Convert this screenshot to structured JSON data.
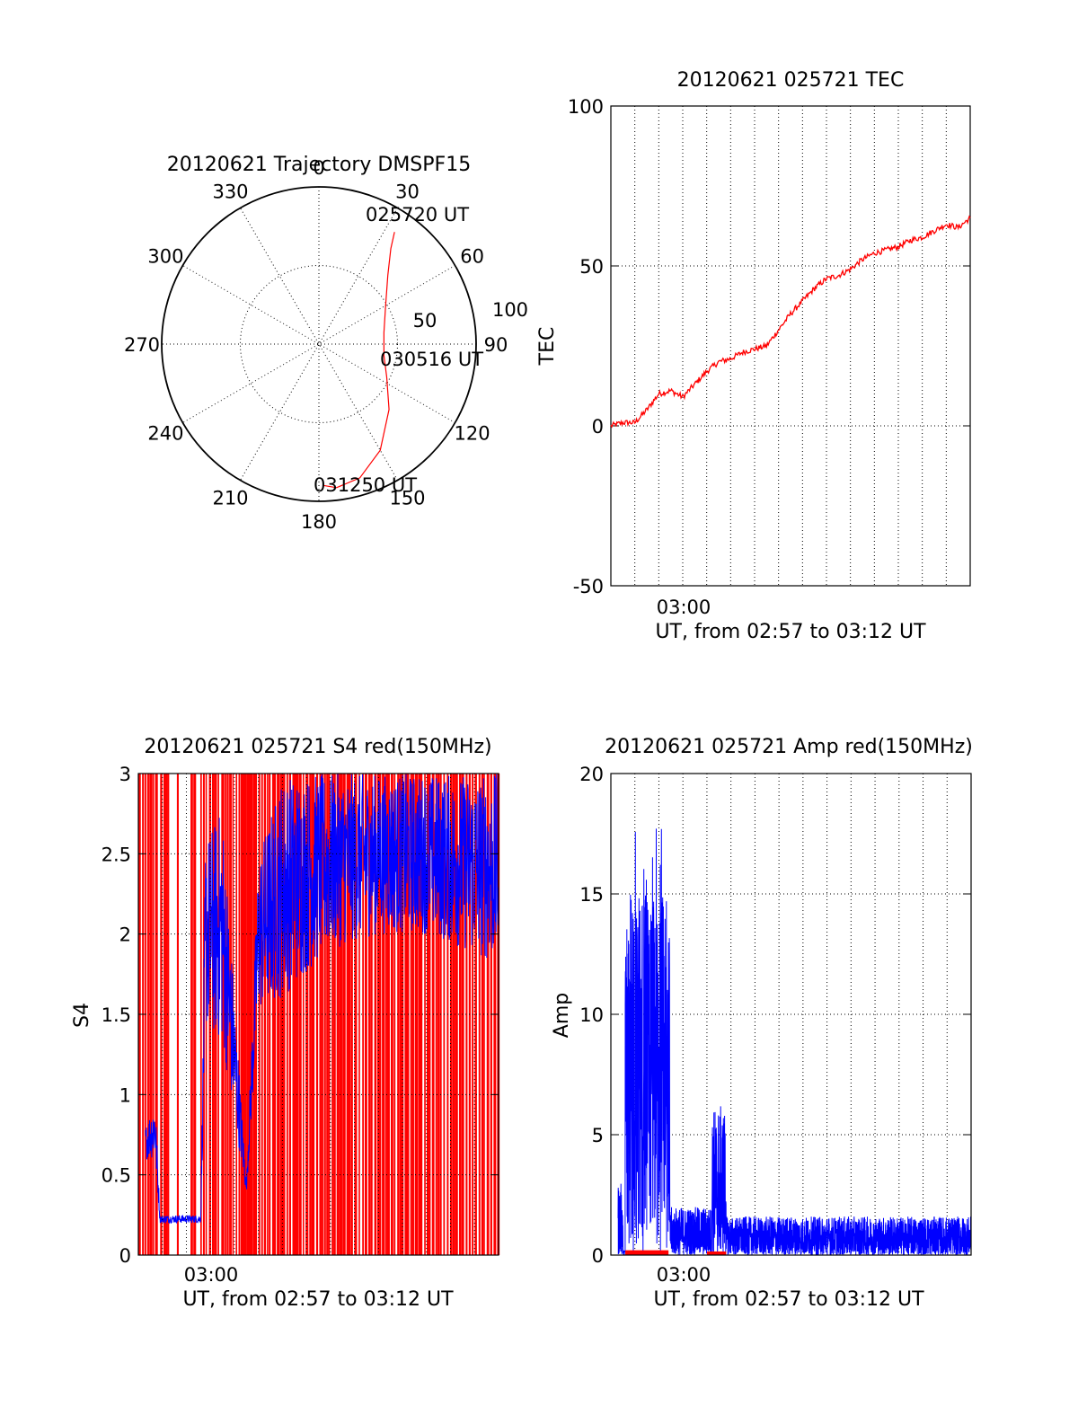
{
  "chart_data": [
    {
      "id": "trajectory",
      "type": "polar",
      "title": "20120621 Trajectory DMSPF15",
      "azimuth_labels": [
        "0",
        "30",
        "60",
        "90",
        "120",
        "150",
        "180",
        "210",
        "240",
        "270",
        "300",
        "330"
      ],
      "radius_labels": [
        "50",
        "100"
      ],
      "rlim": [
        0,
        100
      ],
      "grid": true,
      "trajectory": {
        "color": "#ff0000",
        "points": [
          {
            "az": 34,
            "r": 86
          },
          {
            "az": 37,
            "r": 76
          },
          {
            "az": 45,
            "r": 62
          },
          {
            "az": 60,
            "r": 49
          },
          {
            "az": 80,
            "r": 42
          },
          {
            "az": 100,
            "r": 42
          },
          {
            "az": 116,
            "r": 48
          },
          {
            "az": 133,
            "r": 61
          },
          {
            "az": 150,
            "r": 78
          },
          {
            "az": 163,
            "r": 89
          },
          {
            "az": 173,
            "r": 92
          },
          {
            "az": 178,
            "r": 90
          }
        ]
      },
      "annotations": [
        "025720 UT",
        "030516 UT",
        "031250 UT"
      ]
    },
    {
      "id": "tec",
      "type": "line",
      "title": "20120621 025721 TEC",
      "ylabel": "TEC",
      "xlabel": "UT, from 02:57 to 03:12 UT",
      "x_range_minutes": [
        0,
        15
      ],
      "xtick_labels": [
        {
          "minute": 3,
          "label": "03:00"
        }
      ],
      "ylim": [
        -50,
        100
      ],
      "yticks": [
        "-50",
        "0",
        "50",
        "100"
      ],
      "grid": true,
      "series": [
        {
          "color": "#ff0000",
          "x": [
            0,
            0.5,
            1,
            1.5,
            2,
            2.5,
            3,
            3.5,
            4,
            4.5,
            5,
            5.5,
            6,
            6.5,
            7,
            7.5,
            8,
            8.5,
            9,
            9.5,
            10,
            10.5,
            11,
            11.5,
            12,
            12.5,
            13,
            13.5,
            14,
            14.5,
            15
          ],
          "y": [
            0,
            1,
            1,
            5,
            10,
            11,
            9,
            13,
            17,
            20,
            21,
            23,
            24,
            25,
            30,
            35,
            39,
            43,
            46,
            47,
            49,
            52,
            54,
            55,
            56,
            58,
            59,
            61,
            63,
            62,
            65
          ]
        }
      ]
    },
    {
      "id": "s4",
      "type": "line",
      "title": "20120621 025721 S4 red(150MHz)",
      "ylabel": "S4",
      "xlabel": "UT, from 02:57 to 03:12 UT",
      "x_range_minutes": [
        0,
        15
      ],
      "xtick_labels": [
        {
          "minute": 3,
          "label": "03:00"
        }
      ],
      "ylim": [
        0,
        3
      ],
      "yticks": [
        "0",
        "0.5",
        "1",
        "1.5",
        "2",
        "2.5",
        "3"
      ],
      "grid": true,
      "series": [
        {
          "color": "#0000ff",
          "style": "dense-noise",
          "envelope": [
            {
              "x": 0.3,
              "low": 0.6,
              "high": 0.8
            },
            {
              "x": 0.7,
              "low": 0.6,
              "high": 1.0
            },
            {
              "x": 0.9,
              "low": 0.2,
              "high": 0.25
            },
            {
              "x": 2.6,
              "low": 0.2,
              "high": 0.25
            },
            {
              "x": 2.8,
              "low": 1.4,
              "high": 2.6
            },
            {
              "x": 3.5,
              "low": 1.3,
              "high": 2.8
            },
            {
              "x": 4.5,
              "low": 0.38,
              "high": 0.45
            },
            {
              "x": 5.0,
              "low": 1.5,
              "high": 2.5
            },
            {
              "x": 6.0,
              "low": 1.6,
              "high": 3.0
            },
            {
              "x": 8.0,
              "low": 1.9,
              "high": 3.0
            },
            {
              "x": 10.0,
              "low": 2.0,
              "high": 3.0
            },
            {
              "x": 12.0,
              "low": 2.0,
              "high": 3.0
            },
            {
              "x": 15.0,
              "low": 1.8,
              "high": 3.0
            }
          ]
        },
        {
          "color": "#ff0000",
          "style": "vertical-spikes",
          "range": [
            0,
            3
          ]
        }
      ]
    },
    {
      "id": "amp",
      "type": "line",
      "title": "20120621 025721 Amp red(150MHz)",
      "ylabel": "Amp",
      "xlabel": "UT, from 02:57 to 03:12 UT",
      "x_range_minutes": [
        0,
        15
      ],
      "xtick_labels": [
        {
          "minute": 3,
          "label": "03:00"
        }
      ],
      "ylim": [
        0,
        20
      ],
      "yticks": [
        "0",
        "5",
        "10",
        "15",
        "20"
      ],
      "grid": true,
      "series": [
        {
          "color": "#0000ff",
          "style": "dense-noise",
          "envelope": [
            {
              "x": 0.0,
              "low": 0.0,
              "high": 3.0
            },
            {
              "x": 0.5,
              "low": 0.0,
              "high": 3.0
            },
            {
              "x": 0.6,
              "low": 0.0,
              "high": 0.0
            },
            {
              "x": 0.45,
              "low": 0.0,
              "high": 0.0
            },
            {
              "x": 0.5,
              "low": 0.0,
              "high": 17.5
            },
            {
              "x": 2.4,
              "low": 0.0,
              "high": 18.5
            },
            {
              "x": 2.45,
              "low": 0.0,
              "high": 2.0
            },
            {
              "x": 4.0,
              "low": 0.0,
              "high": 1.5
            },
            {
              "x": 4.2,
              "low": 0.0,
              "high": 6.0
            },
            {
              "x": 4.8,
              "low": 0.0,
              "high": 6.0
            },
            {
              "x": 5.0,
              "low": 0.0,
              "high": 1.5
            },
            {
              "x": 15.0,
              "low": 0.0,
              "high": 1.5
            }
          ]
        },
        {
          "color": "#ff0000",
          "style": "low-band",
          "x": [
            0.6,
            2.4
          ],
          "y": [
            0,
            0.2
          ]
        },
        {
          "color": "#ff0000",
          "style": "low-band",
          "x": [
            4.0,
            4.8
          ],
          "y": [
            0,
            0.15
          ]
        }
      ]
    }
  ]
}
